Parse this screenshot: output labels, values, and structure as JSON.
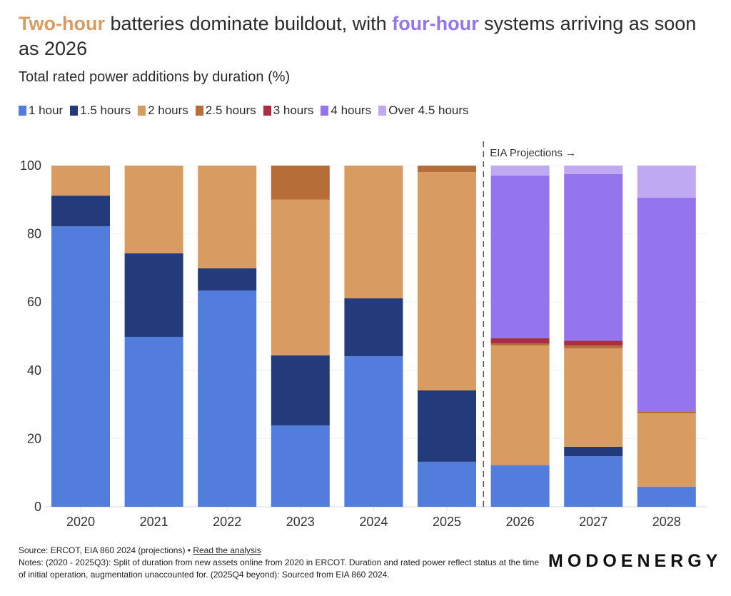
{
  "title": {
    "part1_highlight": "Two-hour",
    "part1_color": "#d89c63",
    "part2": " batteries dominate buildout, with ",
    "part3_highlight": "four-hour",
    "part3_color": "#9475ee",
    "part4": " systems arriving as soon as 2026"
  },
  "footer": {
    "source": "Source: ERCOT, EIA 860 2024 (projections) • ",
    "link": "Read the analysis",
    "notes": "Notes: (2020 - 2025Q3): Split of duration from new assets online from 2020 in ERCOT. Duration and rated power reflect status at the time of initial operation, augmentation unaccounted for. (2025Q4 beyond): Sourced from EIA 860 2024."
  },
  "brand": "MODOENERGY",
  "chart_data": {
    "type": "bar",
    "stacked": true,
    "title": "Two-hour batteries dominate buildout, with four-hour systems arriving as soon as 2026",
    "subtitle": "Total rated power additions by duration (%)",
    "xlabel": "",
    "ylabel": "",
    "ylim": [
      0,
      100
    ],
    "yticks": [
      0,
      20,
      40,
      60,
      80,
      100
    ],
    "grid": true,
    "legend_position": "top-left",
    "categories": [
      "2020",
      "2021",
      "2022",
      "2023",
      "2024",
      "2025",
      "2026",
      "2027",
      "2028"
    ],
    "annotation": {
      "text": "EIA Projections →",
      "after_category": "2025"
    },
    "series": [
      {
        "name": "1 hour",
        "color": "#527ddc",
        "values": [
          82.2,
          49.8,
          63.4,
          23.8,
          44.1,
          13.2,
          12.2,
          14.8,
          5.9
        ]
      },
      {
        "name": "1.5 hours",
        "color": "#233b7a",
        "values": [
          9.0,
          24.5,
          6.5,
          20.6,
          17.0,
          20.9,
          0,
          2.8,
          0
        ]
      },
      {
        "name": "2 hours",
        "color": "#d89c63",
        "values": [
          8.8,
          25.7,
          30.1,
          45.6,
          38.9,
          64.0,
          35.1,
          28.8,
          21.5
        ]
      },
      {
        "name": "2.5 hours",
        "color": "#b76d37",
        "values": [
          0,
          0,
          0,
          10.0,
          0,
          1.9,
          0.6,
          0.9,
          0.6
        ]
      },
      {
        "name": "3 hours",
        "color": "#a92e3f",
        "values": [
          0,
          0,
          0,
          0,
          0,
          0,
          1.5,
          1.4,
          0
        ]
      },
      {
        "name": "4 hours",
        "color": "#9475ee",
        "values": [
          0,
          0,
          0,
          0,
          0,
          0,
          47.7,
          48.8,
          62.6
        ]
      },
      {
        "name": "Over 4.5 hours",
        "color": "#bfa9f3",
        "values": [
          0,
          0,
          0,
          0,
          0,
          0,
          2.9,
          2.5,
          9.4
        ]
      }
    ]
  }
}
